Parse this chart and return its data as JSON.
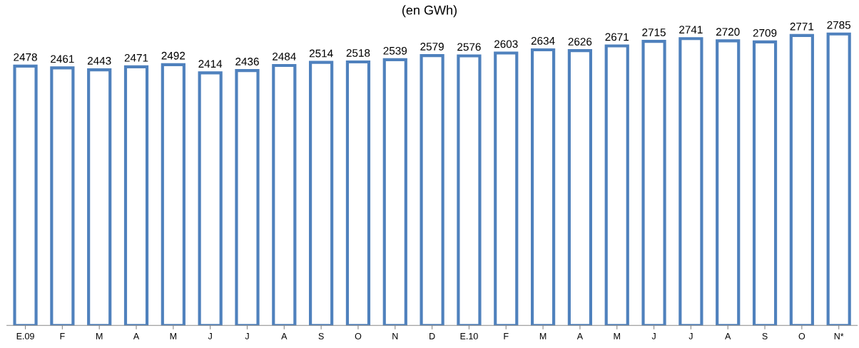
{
  "chart_data": {
    "type": "bar",
    "title": "(en GWh)",
    "categories": [
      "E.09",
      "F",
      "M",
      "A",
      "M",
      "J",
      "J",
      "A",
      "S",
      "O",
      "N",
      "D",
      "E.10",
      "F",
      "M",
      "A",
      "M",
      "J",
      "J",
      "A",
      "S",
      "O",
      "N*"
    ],
    "values": [
      2478,
      2461,
      2443,
      2471,
      2492,
      2414,
      2436,
      2484,
      2514,
      2518,
      2539,
      2579,
      2576,
      2603,
      2634,
      2626,
      2671,
      2715,
      2741,
      2720,
      2709,
      2771,
      2785
    ],
    "color": "#4f81bd",
    "data_labels": true,
    "tick_labels": "x",
    "grid": false,
    "legend": false
  }
}
